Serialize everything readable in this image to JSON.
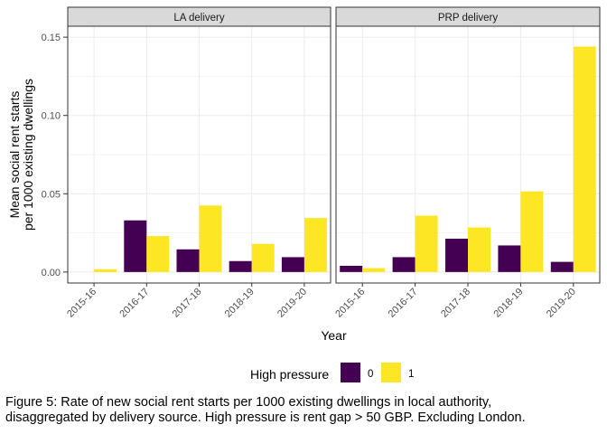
{
  "chart_data": {
    "type": "bar",
    "ylabel": "Mean social rent starts\nper 1000 existing dwellings",
    "xlabel": "Year",
    "ylim": [
      -0.007,
      0.157
    ],
    "yticks": [
      0.0,
      0.05,
      0.1,
      0.15
    ],
    "ytick_labels": [
      "0.00",
      "0.05",
      "0.10",
      "0.15"
    ],
    "categories": [
      "2015-16",
      "2016-17",
      "2017-18",
      "2018-19",
      "2019-20"
    ],
    "grid": true,
    "legend": {
      "title": "High pressure",
      "position": "bottom",
      "entries": [
        {
          "label": "0",
          "color": "#440154"
        },
        {
          "label": "1",
          "color": "#FDE725"
        }
      ]
    },
    "panels": [
      {
        "title": "LA delivery",
        "series": [
          {
            "key": "0",
            "color": "#440154",
            "values": [
              0.0,
              0.033,
              0.0145,
              0.007,
              0.0095
            ]
          },
          {
            "key": "1",
            "color": "#FDE725",
            "values": [
              0.0018,
              0.023,
              0.0425,
              0.018,
              0.0345
            ]
          }
        ]
      },
      {
        "title": "PRP delivery",
        "series": [
          {
            "key": "0",
            "color": "#440154",
            "values": [
              0.004,
              0.0095,
              0.0213,
              0.017,
              0.0065
            ]
          },
          {
            "key": "1",
            "color": "#FDE725",
            "values": [
              0.0025,
              0.036,
              0.0285,
              0.0515,
              0.144
            ]
          }
        ]
      }
    ]
  },
  "caption": "Figure 5: Rate of new social rent starts per 1000 existing dwellings in local authority,\ndisaggregated by delivery source. High pressure is rent gap > 50 GBP. Excluding London."
}
